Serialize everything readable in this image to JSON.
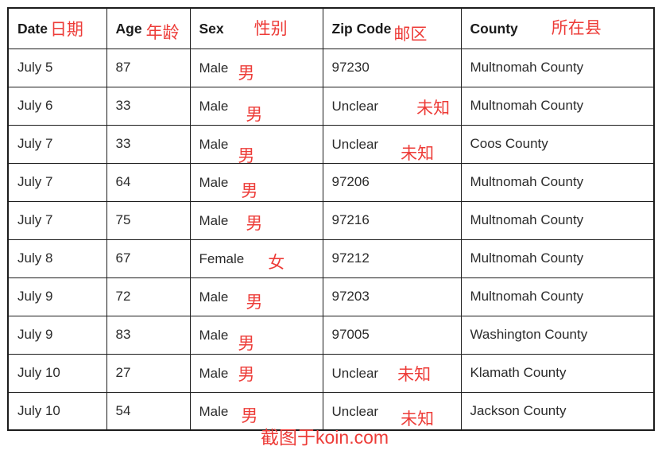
{
  "chart_data": {
    "type": "table",
    "columns": [
      {
        "en": "Date",
        "zh": "日期"
      },
      {
        "en": "Age",
        "zh": "年龄"
      },
      {
        "en": "Sex",
        "zh": "性别"
      },
      {
        "en": "Zip Code",
        "zh": "邮区"
      },
      {
        "en": "County",
        "zh": "所在县"
      }
    ],
    "rows": [
      {
        "date": "July 5",
        "age": "87",
        "sex": "Male",
        "sex_zh": "男",
        "zip": "97230",
        "zip_zh": "",
        "county": "Multnomah County"
      },
      {
        "date": "July 6",
        "age": "33",
        "sex": "Male",
        "sex_zh": "男",
        "zip": "Unclear",
        "zip_zh": "未知",
        "county": "Multnomah County"
      },
      {
        "date": "July 7",
        "age": "33",
        "sex": "Male",
        "sex_zh": "男",
        "zip": "Unclear",
        "zip_zh": "未知",
        "county": "Coos County"
      },
      {
        "date": "July 7",
        "age": "64",
        "sex": "Male",
        "sex_zh": "男",
        "zip": "97206",
        "zip_zh": "",
        "county": "Multnomah County"
      },
      {
        "date": "July 7",
        "age": "75",
        "sex": "Male",
        "sex_zh": "男",
        "zip": "97216",
        "zip_zh": "",
        "county": "Multnomah County"
      },
      {
        "date": "July 8",
        "age": "67",
        "sex": "Female",
        "sex_zh": "女",
        "zip": "97212",
        "zip_zh": "",
        "county": "Multnomah County"
      },
      {
        "date": "July 9",
        "age": "72",
        "sex": "Male",
        "sex_zh": "男",
        "zip": "97203",
        "zip_zh": "",
        "county": "Multnomah County"
      },
      {
        "date": "July 9",
        "age": "83",
        "sex": "Male",
        "sex_zh": "男",
        "zip": "97005",
        "zip_zh": "",
        "county": "Washington County"
      },
      {
        "date": "July 10",
        "age": "27",
        "sex": "Male",
        "sex_zh": "男",
        "zip": "Unclear",
        "zip_zh": "未知",
        "county": "Klamath County"
      },
      {
        "date": "July 10",
        "age": "54",
        "sex": "Male",
        "sex_zh": "男",
        "zip": "Unclear",
        "zip_zh": "未知",
        "county": "Jackson County"
      }
    ]
  },
  "watermark": "截图于koin.com",
  "colors": {
    "annotation_red": "#ed3c38",
    "text": "#2b2b2b",
    "border": "#1c1c1c",
    "background": "#ffffff"
  }
}
